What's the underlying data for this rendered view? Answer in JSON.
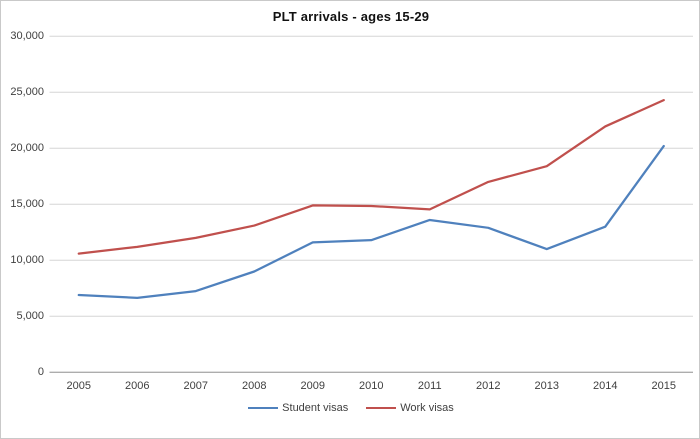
{
  "chart_data": {
    "type": "line",
    "title": "PLT arrivals - ages 15-29",
    "categories": [
      "2005",
      "2006",
      "2007",
      "2008",
      "2009",
      "2010",
      "2011",
      "2012",
      "2013",
      "2014",
      "2015"
    ],
    "series": [
      {
        "name": "Student visas",
        "color": "#4F81BD",
        "values": [
          6900,
          6650,
          7250,
          9000,
          11600,
          11800,
          13600,
          12900,
          11000,
          13000,
          20200
        ]
      },
      {
        "name": "Work visas",
        "color": "#C0504D",
        "values": [
          10600,
          11200,
          12000,
          13100,
          14900,
          14850,
          14550,
          17000,
          18400,
          21950,
          24300
        ]
      }
    ],
    "xlabel": "",
    "ylabel": "",
    "ylim": [
      0,
      30000
    ],
    "ytick_step": 5000,
    "ytick_labels": [
      "0",
      "5,000",
      "10,000",
      "15,000",
      "20,000",
      "25,000",
      "30,000"
    ],
    "grid": "horizontal",
    "legend_position": "bottom",
    "colors": {
      "gridline": "#D6D6D6",
      "axis_line": "#ADADAD",
      "tick_text": "#404040",
      "title_text": "#111111",
      "frame_border": "#C9C9C9",
      "background": "#FFFFFF"
    }
  }
}
